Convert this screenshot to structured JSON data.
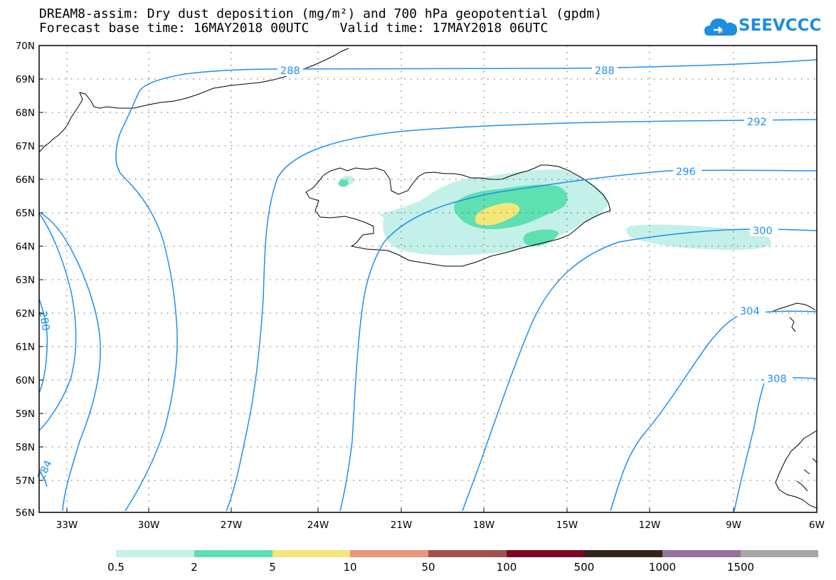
{
  "title": {
    "line1": "DREAM8-assim: Dry dust deposition (mg/m²) and 700 hPa geopotential (gpdm)",
    "line2": "Forecast base time: 16MAY2018 00UTC    Valid time: 17MAY2018 06UTC"
  },
  "logo": {
    "text": "SEEVCCC",
    "icon": "cloud-icon"
  },
  "colors": {
    "contour": "#1e90ee",
    "coast": "#000000",
    "grid": "#555555"
  },
  "axes": {
    "lat_labels": [
      "70N",
      "69N",
      "68N",
      "67N",
      "66N",
      "65N",
      "64N",
      "63N",
      "62N",
      "61N",
      "60N",
      "59N",
      "58N",
      "57N",
      "56N"
    ],
    "lon_labels": [
      "33W",
      "30W",
      "27W",
      "24W",
      "21W",
      "18W",
      "15W",
      "12W",
      "9W",
      "6W"
    ]
  },
  "contours": [
    {
      "label": "288"
    },
    {
      "label": "288"
    },
    {
      "label": "292"
    },
    {
      "label": "296"
    },
    {
      "label": "300"
    },
    {
      "label": "304"
    },
    {
      "label": "308"
    },
    {
      "label": "280"
    },
    {
      "label": "284"
    }
  ],
  "legend": {
    "labels": [
      "0.5",
      "2",
      "5",
      "10",
      "50",
      "100",
      "500",
      "1000",
      "1500"
    ],
    "colors": [
      "#c3f0e8",
      "#5ee0b0",
      "#f5e67a",
      "#e9967a",
      "#a0524d",
      "#7d0524",
      "#352319",
      "#957299",
      "#a6a6a6"
    ]
  }
}
